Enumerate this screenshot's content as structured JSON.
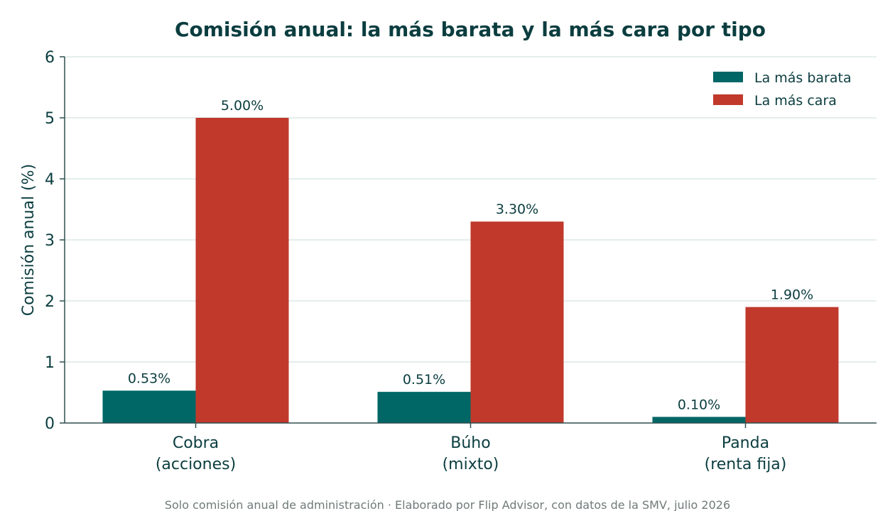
{
  "chart_data": {
    "type": "bar",
    "title": "Comisión anual: la más barata y la más cara por tipo",
    "ylabel": "Comisión anual (%)",
    "xlabel": "",
    "ylim": [
      0,
      6
    ],
    "yticks": [
      0,
      1,
      2,
      3,
      4,
      5,
      6
    ],
    "grid": true,
    "legend_position": "top-right",
    "categories": [
      [
        "Cobra",
        "(acciones)"
      ],
      [
        "Búho",
        "(mixto)"
      ],
      [
        "Panda",
        "(renta fija)"
      ]
    ],
    "series": [
      {
        "name": "La más barata",
        "color": "#006666",
        "values": [
          0.53,
          0.51,
          0.1
        ],
        "labels": [
          "0.53%",
          "0.51%",
          "0.10%"
        ]
      },
      {
        "name": "La más cara",
        "color": "#c0392b",
        "values": [
          5.0,
          3.3,
          1.9
        ],
        "labels": [
          "5.00%",
          "3.30%",
          "1.90%"
        ]
      }
    ],
    "source": "Solo comisión anual de administración · Elaborado por Flip Advisor, con datos de la SMV, julio 2026"
  }
}
